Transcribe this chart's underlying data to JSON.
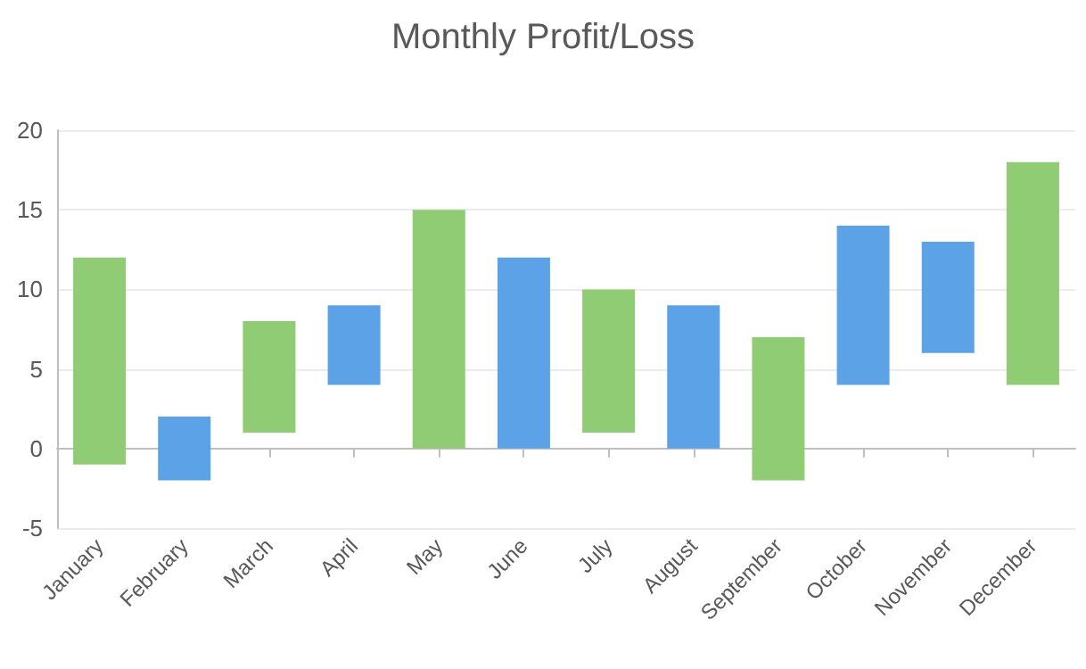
{
  "chart_data": {
    "type": "bar",
    "title": "Monthly Profit/Loss",
    "categories": [
      "January",
      "February",
      "March",
      "April",
      "May",
      "June",
      "July",
      "August",
      "September",
      "October",
      "November",
      "December"
    ],
    "base": [
      -1,
      -2,
      1,
      4,
      0,
      0,
      1,
      0,
      -2,
      4,
      6,
      4
    ],
    "values": [
      13,
      4,
      7,
      5,
      15,
      12,
      9,
      9,
      9,
      10,
      7,
      14
    ],
    "colors": [
      "#8fcc74",
      "#5ba3e6",
      "#8fcc74",
      "#5ba3e6",
      "#8fcc74",
      "#5ba3e6",
      "#8fcc74",
      "#5ba3e6",
      "#8fcc74",
      "#5ba3e6",
      "#5ba3e6",
      "#8fcc74"
    ],
    "ylim": [
      -5,
      20
    ],
    "yticks": [
      -5,
      0,
      5,
      10,
      15,
      20
    ],
    "grid": "y"
  }
}
